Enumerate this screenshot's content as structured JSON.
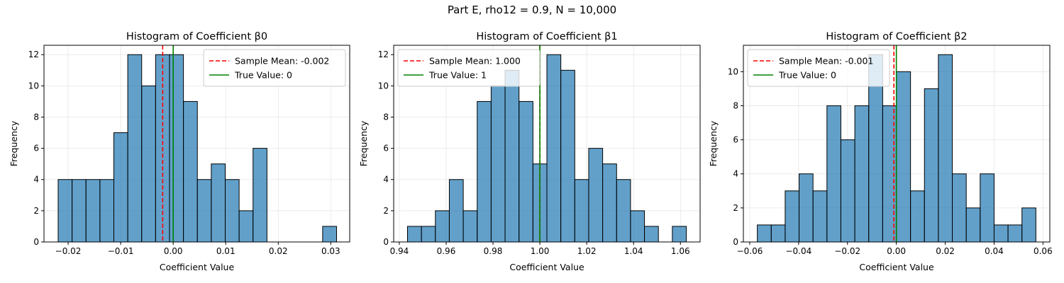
{
  "figure": {
    "suptitle": "Part E, rho12 = 0.9, N = 10,000"
  },
  "colors": {
    "bar_fill": "#1f77b4",
    "bar_edge": "#000000",
    "sample_mean_line": "#ff0000",
    "true_value_line": "#008000",
    "grid": "#b0b0b0"
  },
  "chart_data": [
    {
      "type": "bar",
      "title": "Histogram of Coefficient β0",
      "xlabel": "Coefficient Value",
      "ylabel": "Frequency",
      "xlim": [
        -0.0246,
        0.0336
      ],
      "ylim": [
        0,
        12.6
      ],
      "xticks": [
        -0.02,
        -0.01,
        0.0,
        0.01,
        0.02,
        0.03
      ],
      "xtick_labels": [
        "−0.02",
        "−0.01",
        "0.00",
        "0.01",
        "0.02",
        "0.03"
      ],
      "yticks": [
        0,
        2,
        4,
        6,
        8,
        10,
        12
      ],
      "bin_start": -0.0219,
      "bin_width": 0.00265,
      "counts": [
        4,
        4,
        4,
        4,
        7,
        12,
        10,
        12,
        12,
        9,
        4,
        5,
        4,
        2,
        6,
        0,
        0,
        0,
        0,
        1
      ],
      "sample_mean": -0.002,
      "true_value": 0,
      "legend": [
        "Sample Mean: -0.002",
        "True Value: 0"
      ],
      "legend_loc": "upper right",
      "grid": true
    },
    {
      "type": "bar",
      "title": "Histogram of Coefficient β1",
      "xlabel": "Coefficient Value",
      "ylabel": "Frequency",
      "xlim": [
        0.9376,
        1.0684
      ],
      "ylim": [
        0,
        12.6
      ],
      "xticks": [
        0.94,
        0.96,
        0.98,
        1.0,
        1.02,
        1.04,
        1.06
      ],
      "xtick_labels": [
        "0.94",
        "0.96",
        "0.98",
        "1.00",
        "1.02",
        "1.04",
        "1.06"
      ],
      "yticks": [
        0,
        2,
        4,
        6,
        8,
        10,
        12
      ],
      "bin_start": 0.9435,
      "bin_width": 0.00595,
      "counts": [
        1,
        1,
        2,
        4,
        2,
        9,
        10,
        11,
        9,
        5,
        12,
        11,
        4,
        6,
        5,
        4,
        2,
        1,
        0,
        1
      ],
      "sample_mean": 1.0,
      "true_value": 1,
      "legend": [
        "Sample Mean: 1.000",
        "True Value: 1"
      ],
      "legend_loc": "upper left",
      "grid": true
    },
    {
      "type": "bar",
      "title": "Histogram of Coefficient β2",
      "xlabel": "Coefficient Value",
      "ylabel": "Frequency",
      "xlim": [
        -0.0626,
        0.0628
      ],
      "ylim": [
        0,
        11.55
      ],
      "xticks": [
        -0.06,
        -0.04,
        -0.02,
        0.0,
        0.02,
        0.04,
        0.06
      ],
      "xtick_labels": [
        "−0.06",
        "−0.04",
        "−0.02",
        "0.00",
        "0.02",
        "0.04",
        "0.06"
      ],
      "yticks": [
        0,
        2,
        4,
        6,
        8,
        10
      ],
      "bin_start": -0.0569,
      "bin_width": 0.0057,
      "counts": [
        1,
        1,
        3,
        4,
        3,
        8,
        6,
        8,
        11,
        8,
        10,
        3,
        9,
        11,
        4,
        2,
        4,
        1,
        1,
        2
      ],
      "sample_mean": -0.001,
      "true_value": 0,
      "legend": [
        "Sample Mean: -0.001",
        "True Value: 0"
      ],
      "legend_loc": "upper left",
      "grid": true
    }
  ]
}
